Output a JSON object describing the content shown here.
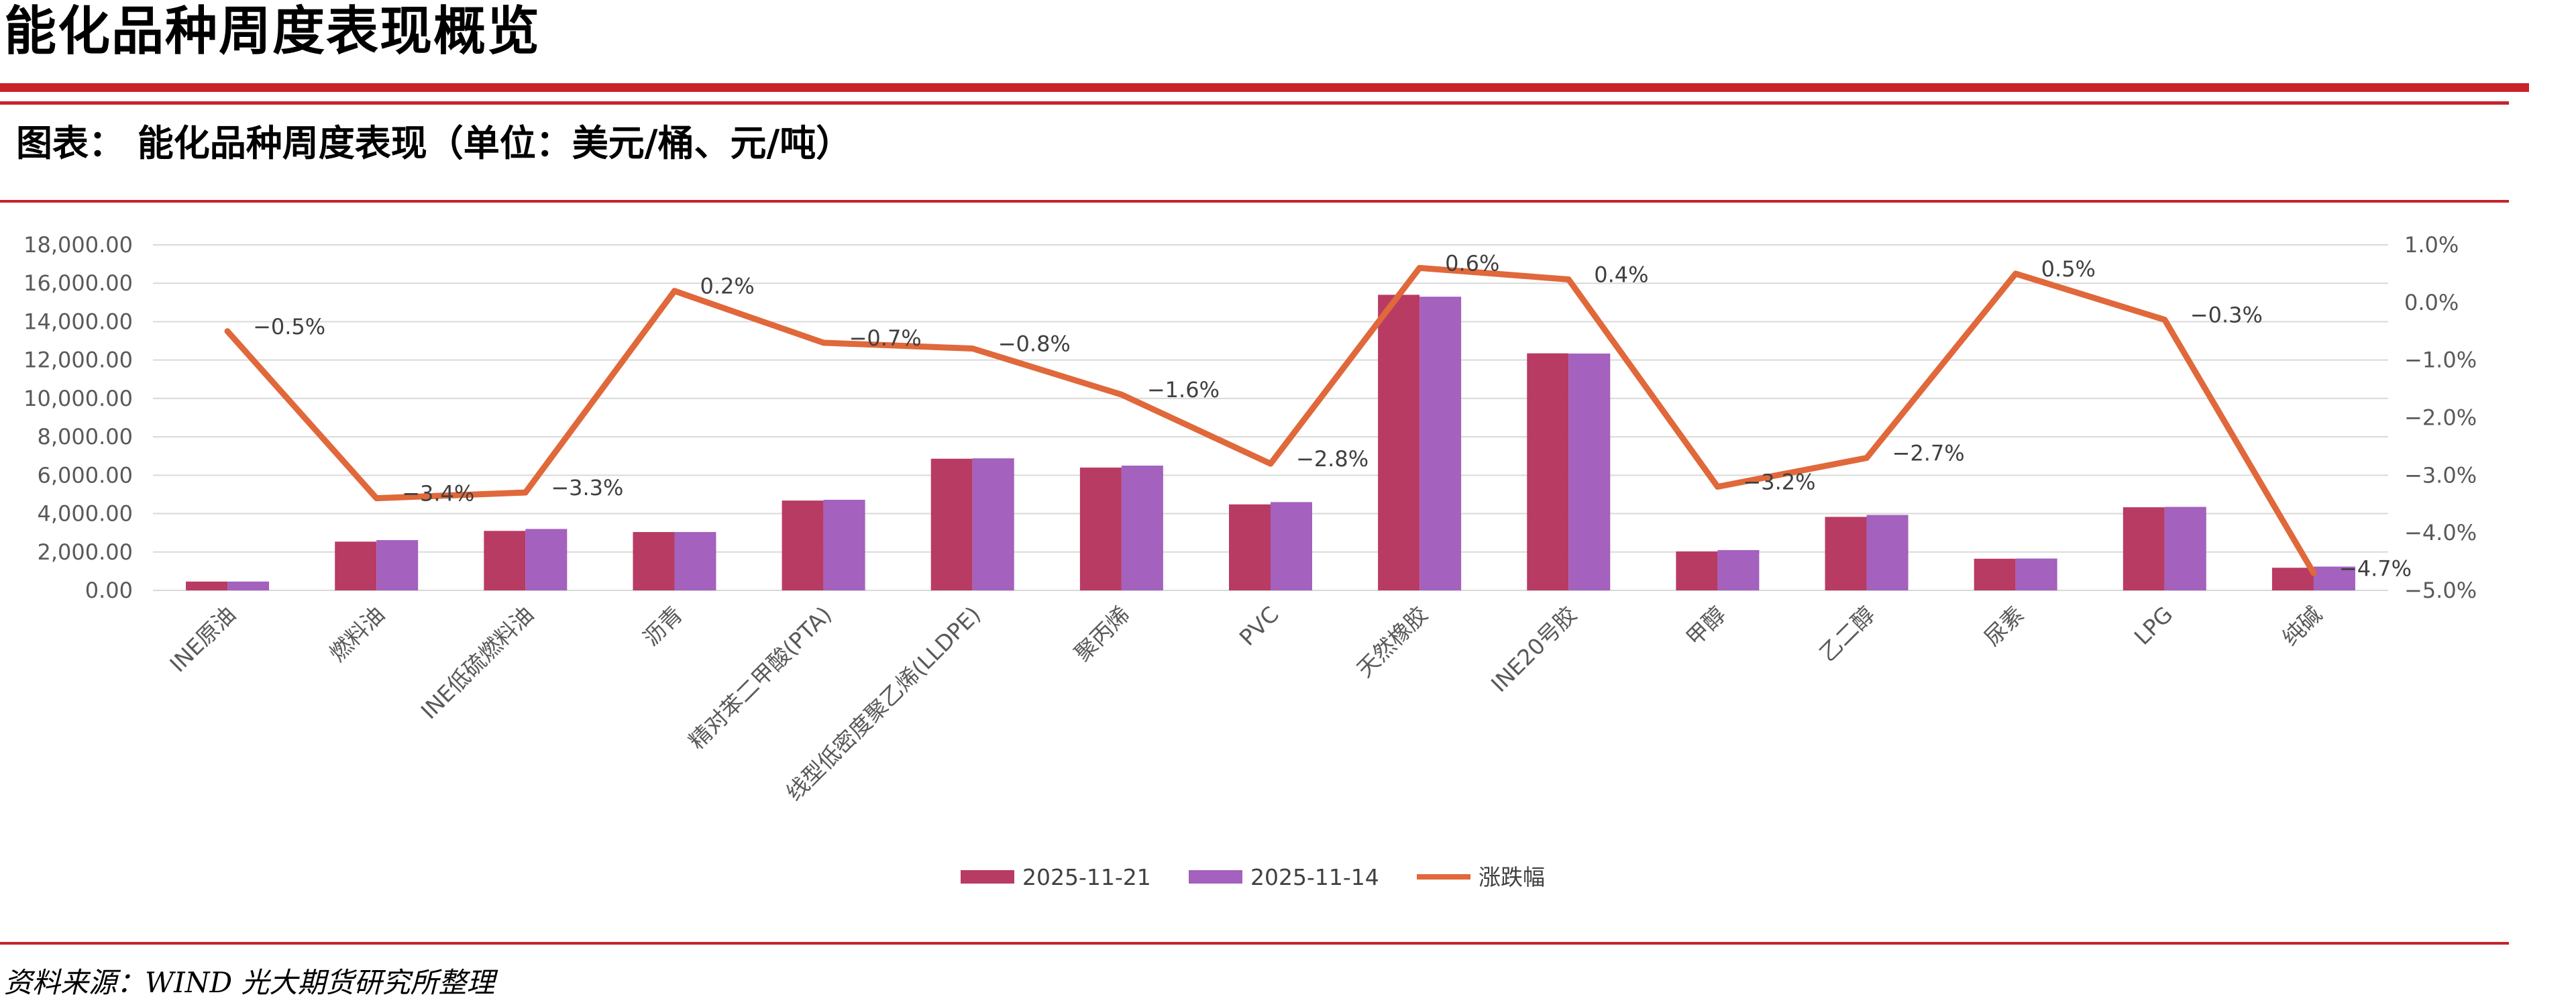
{
  "header": {
    "title": "能化品种周度表现概览",
    "caption": "图表： 能化品种周度表现（单位：美元/桶、元/吨）",
    "source": "资料来源：WIND 光大期货研究所整理"
  },
  "colors": {
    "accent_red": "#c9222b",
    "bar_current": "#b83b63",
    "bar_previous": "#a461bd",
    "line_change": "#e0683a"
  },
  "chart_data": {
    "type": "bar",
    "categories": [
      "INE原油",
      "燃料油",
      "INE低硫燃料油",
      "沥青",
      "精对苯二甲酸(PTA)",
      "线型低密度聚乙烯(LLDPE)",
      "聚丙烯",
      "PVC",
      "天然橡胶",
      "INE20号胶",
      "甲醇",
      "乙二醇",
      "尿素",
      "LPG",
      "纯碱"
    ],
    "series": [
      {
        "name": "2025-11-21",
        "type": "bar",
        "axis": "left",
        "values": [
          460,
          2540,
          3100,
          3040,
          4680,
          6860,
          6400,
          4480,
          15400,
          12350,
          2030,
          3830,
          1650,
          4330,
          1180
        ]
      },
      {
        "name": "2025-11-14",
        "type": "bar",
        "axis": "left",
        "values": [
          460,
          2620,
          3200,
          3040,
          4720,
          6880,
          6500,
          4600,
          15300,
          12340,
          2100,
          3930,
          1660,
          4350,
          1240
        ]
      },
      {
        "name": "涨跌幅",
        "type": "line",
        "axis": "right",
        "values": [
          -0.5,
          -3.4,
          -3.3,
          0.2,
          -0.7,
          -0.8,
          -1.6,
          -2.8,
          0.6,
          0.4,
          -3.2,
          -2.7,
          0.5,
          -0.3,
          -4.7
        ]
      }
    ],
    "line_labels": [
      "−0.5%",
      "−3.4%",
      "−3.3%",
      "0.2%",
      "−0.7%",
      "−0.8%",
      "−1.6%",
      "−2.8%",
      "0.6%",
      "0.4%",
      "−3.2%",
      "−2.7%",
      "0.5%",
      "−0.3%",
      "−4.7%"
    ],
    "y_left": {
      "min": 0,
      "max": 18000,
      "step": 2000,
      "tick_labels": [
        "0.00",
        "2,000.00",
        "4,000.00",
        "6,000.00",
        "8,000.00",
        "10,000.00",
        "12,000.00",
        "14,000.00",
        "16,000.00",
        "18,000.00"
      ]
    },
    "y_right": {
      "min": -5,
      "max": 1,
      "step": 1,
      "tick_labels": [
        "−5.0%",
        "−4.0%",
        "−3.0%",
        "−2.0%",
        "−1.0%",
        "0.0%",
        "1.0%"
      ]
    },
    "grid": true,
    "legend": {
      "position": "bottom",
      "items": [
        "2025-11-21",
        "2025-11-14",
        "涨跌幅"
      ]
    }
  }
}
